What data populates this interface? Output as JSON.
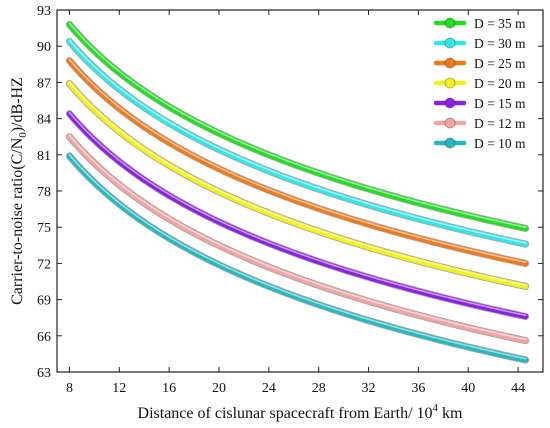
{
  "chart_data": {
    "type": "line",
    "xlabel_main": "Distance of cislunar spacecraft from Earth/ 10",
    "xlabel_sup": "4",
    "xlabel_tail": " km",
    "ylabel_main": "Carrier-to-noise ratio(C/N",
    "ylabel_sub": "0",
    "ylabel_tail": ")/dB-HZ",
    "xlim": [
      7,
      46
    ],
    "ylim": [
      63,
      93
    ],
    "xticks": [
      8,
      12,
      16,
      20,
      24,
      28,
      32,
      36,
      40,
      44
    ],
    "yticks": [
      63,
      66,
      69,
      72,
      75,
      78,
      81,
      84,
      87,
      90,
      93
    ],
    "x": [
      8,
      44.6
    ],
    "legend_position": "top-right",
    "series": [
      {
        "name": "D = 35 m",
        "color": "#22dd22",
        "values": [
          91.8,
          74.9
        ]
      },
      {
        "name": "D = 30 m",
        "color": "#33e6e6",
        "values": [
          90.4,
          73.6
        ]
      },
      {
        "name": "D = 25 m",
        "color": "#f07a1c",
        "values": [
          88.8,
          72.0
        ]
      },
      {
        "name": "D = 20 m",
        "color": "#f2f21a",
        "values": [
          86.9,
          70.1
        ]
      },
      {
        "name": "D = 15 m",
        "color": "#8a22e0",
        "values": [
          84.4,
          67.6
        ]
      },
      {
        "name": "D = 12 m",
        "color": "#f2a3a3",
        "values": [
          82.5,
          65.6
        ]
      },
      {
        "name": "D = 10 m",
        "color": "#27b8be",
        "values": [
          80.9,
          64.0
        ]
      }
    ]
  }
}
